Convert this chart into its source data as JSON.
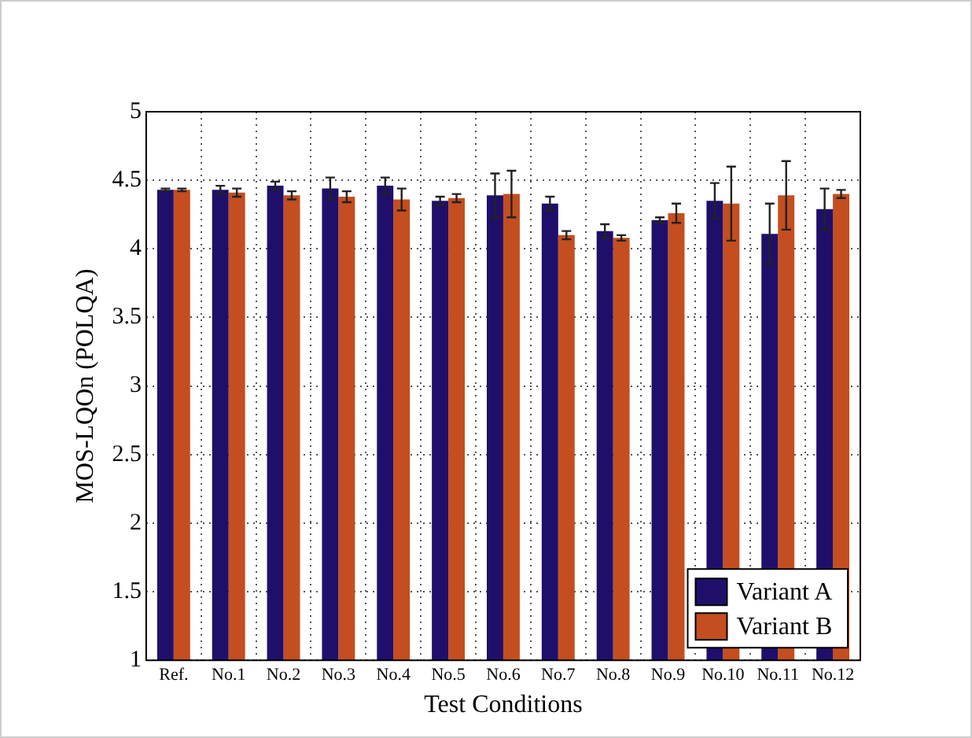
{
  "chart_data": {
    "type": "bar",
    "xlabel": "Test Conditions",
    "ylabel": "MOS-LQOn (POLQA)",
    "categories": [
      "Ref.",
      "No.1",
      "No.2",
      "No.3",
      "No.4",
      "No.5",
      "No.6",
      "No.7",
      "No.8",
      "No.9",
      "No.10",
      "No.11",
      "No.12"
    ],
    "series": [
      {
        "name": "Variant A",
        "color": "#1f0f6b",
        "values": [
          4.43,
          4.43,
          4.46,
          4.44,
          4.46,
          4.35,
          4.39,
          4.33,
          4.13,
          4.21,
          4.35,
          4.11,
          4.29
        ],
        "errors": [
          0.01,
          0.03,
          0.03,
          0.08,
          0.06,
          0.03,
          0.16,
          0.05,
          0.05,
          0.02,
          0.13,
          0.22,
          0.15
        ]
      },
      {
        "name": "Variant B",
        "color": "#c44e1f",
        "values": [
          4.43,
          4.41,
          4.39,
          4.38,
          4.36,
          4.37,
          4.4,
          4.1,
          4.08,
          4.26,
          4.33,
          4.39,
          4.4
        ],
        "errors": [
          0.01,
          0.03,
          0.03,
          0.04,
          0.08,
          0.03,
          0.17,
          0.03,
          0.02,
          0.07,
          0.27,
          0.25,
          0.03
        ]
      }
    ],
    "ylim": [
      1,
      5
    ],
    "yticks": [
      1,
      1.5,
      2,
      2.5,
      3,
      3.5,
      4,
      4.5,
      5
    ],
    "grid": true,
    "line_style": "dotted",
    "legend": "bottom right"
  }
}
